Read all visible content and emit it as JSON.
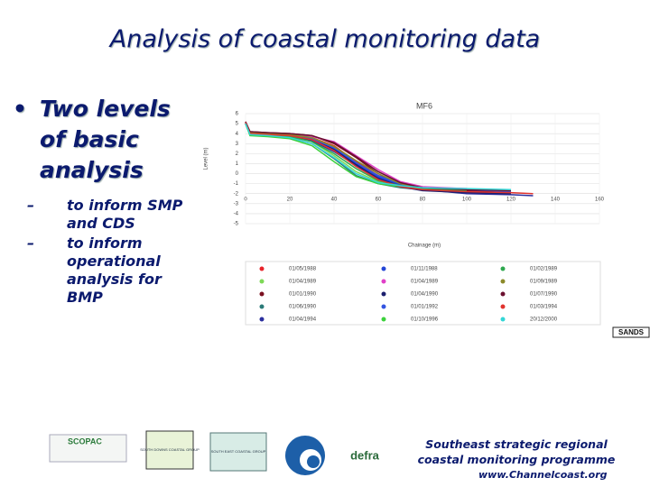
{
  "header": {
    "title": "Analysis of coastal monitoring data"
  },
  "bullets": {
    "main": "Two levels of basic analysis",
    "subs": [
      "to inform SMP and CDS",
      "to inform operational analysis for BMP"
    ]
  },
  "chart_data": {
    "type": "line",
    "title": "MF6",
    "y_label": "Level (m)",
    "x_label": "Chainage (m)",
    "x": [
      0,
      2,
      10,
      20,
      30,
      40,
      50,
      60,
      70,
      80,
      100,
      120,
      130
    ],
    "xlim": [
      0,
      160
    ],
    "xticks": [
      0,
      20,
      40,
      60,
      80,
      100,
      120,
      140,
      160
    ],
    "ylim": [
      -5,
      6
    ],
    "yticks": [
      -5,
      -4,
      -3,
      -2,
      -1,
      0,
      1,
      2,
      3,
      4,
      5,
      6
    ],
    "grid": true,
    "series": [
      {
        "name": "01/05/1988",
        "color": "#e8232a",
        "values": [
          5.2,
          4.1,
          4.0,
          3.9,
          3.6,
          2.8,
          1.2,
          -0.2,
          -1.0,
          -1.4,
          -1.6,
          -1.7,
          null
        ]
      },
      {
        "name": "01/04/1989",
        "color": "#7ed957",
        "values": [
          5.0,
          4.0,
          3.9,
          3.8,
          3.2,
          1.8,
          0.2,
          -0.8,
          -1.3,
          -1.6,
          -1.8,
          null,
          null
        ]
      },
      {
        "name": "01/01/1990",
        "color": "#7a1020",
        "values": [
          5.1,
          4.2,
          4.1,
          4.0,
          3.8,
          3.0,
          1.6,
          0.0,
          -1.1,
          -1.5,
          -1.7,
          -1.8,
          null
        ]
      },
      {
        "name": "01/06/1990",
        "color": "#2b7a78",
        "values": [
          5.0,
          3.9,
          3.8,
          3.6,
          3.0,
          1.5,
          -0.2,
          -1.0,
          -1.4,
          -1.6,
          null,
          null,
          null
        ]
      },
      {
        "name": "01/04/1994",
        "color": "#2b2f9e",
        "values": [
          5.0,
          4.0,
          3.9,
          3.7,
          3.3,
          2.2,
          0.8,
          -0.4,
          -1.2,
          -1.6,
          -2.0,
          -2.1,
          -2.2
        ]
      },
      {
        "name": "01/11/1988",
        "color": "#2346d6",
        "values": [
          5.1,
          4.1,
          4.0,
          3.9,
          3.5,
          2.5,
          1.0,
          -0.3,
          -1.1,
          -1.5,
          -1.7,
          null,
          null
        ]
      },
      {
        "name": "01/04/1989",
        "color": "#e040c8",
        "values": [
          5.0,
          4.1,
          4.0,
          3.9,
          3.7,
          3.2,
          1.8,
          0.4,
          -0.8,
          -1.3,
          -1.5,
          null,
          null
        ]
      },
      {
        "name": "01/04/1990",
        "color": "#1c1f6e",
        "values": [
          5.0,
          4.0,
          3.9,
          3.8,
          3.4,
          2.4,
          0.9,
          -0.5,
          -1.3,
          -1.7,
          -1.9,
          -2.0,
          null
        ]
      },
      {
        "name": "01/01/1992",
        "color": "#3354e0",
        "values": [
          5.0,
          4.0,
          4.0,
          3.8,
          3.5,
          2.6,
          1.1,
          -0.2,
          -1.0,
          -1.4,
          -1.6,
          -1.8,
          null
        ]
      },
      {
        "name": "01/10/1996",
        "color": "#3cd13c",
        "values": [
          5.0,
          3.8,
          3.7,
          3.5,
          2.8,
          1.2,
          -0.3,
          -1.0,
          -1.3,
          -1.5,
          null,
          null,
          null
        ]
      },
      {
        "name": "01/02/1989",
        "color": "#2fa84f",
        "values": [
          5.1,
          4.0,
          3.9,
          3.7,
          3.2,
          2.0,
          0.5,
          -0.7,
          -1.2,
          -1.5,
          -1.7,
          null,
          null
        ]
      },
      {
        "name": "01/09/1989",
        "color": "#8c8a2a",
        "values": [
          5.0,
          4.1,
          4.0,
          3.9,
          3.6,
          2.7,
          1.3,
          0.0,
          -1.0,
          -1.4,
          -1.6,
          null,
          null
        ]
      },
      {
        "name": "01/07/1990",
        "color": "#6b1030",
        "values": [
          5.2,
          4.2,
          4.1,
          4.0,
          3.8,
          3.1,
          1.7,
          0.2,
          -0.9,
          -1.4,
          -1.6,
          -1.7,
          null
        ]
      },
      {
        "name": "01/03/1994",
        "color": "#e0332e",
        "values": [
          5.1,
          4.0,
          3.9,
          3.8,
          3.4,
          2.3,
          0.7,
          -0.6,
          -1.3,
          -1.6,
          -1.8,
          -1.9,
          -2.0
        ]
      },
      {
        "name": "20/12/2000",
        "color": "#33d6d6",
        "values": [
          5.0,
          3.9,
          3.8,
          3.6,
          3.0,
          1.6,
          0.0,
          -0.9,
          -1.2,
          -1.4,
          -1.5,
          -1.6,
          null
        ]
      }
    ]
  },
  "sands": "SANDS",
  "logos": [
    "SCOPAC",
    "SOUTH DOWNS COASTAL GROUP",
    "SOUTH EAST COASTAL GROUP",
    "defra"
  ],
  "footer": {
    "programme": "Southeast strategic regional coastal monitoring programme",
    "url": "www.Channelcoast.org"
  }
}
